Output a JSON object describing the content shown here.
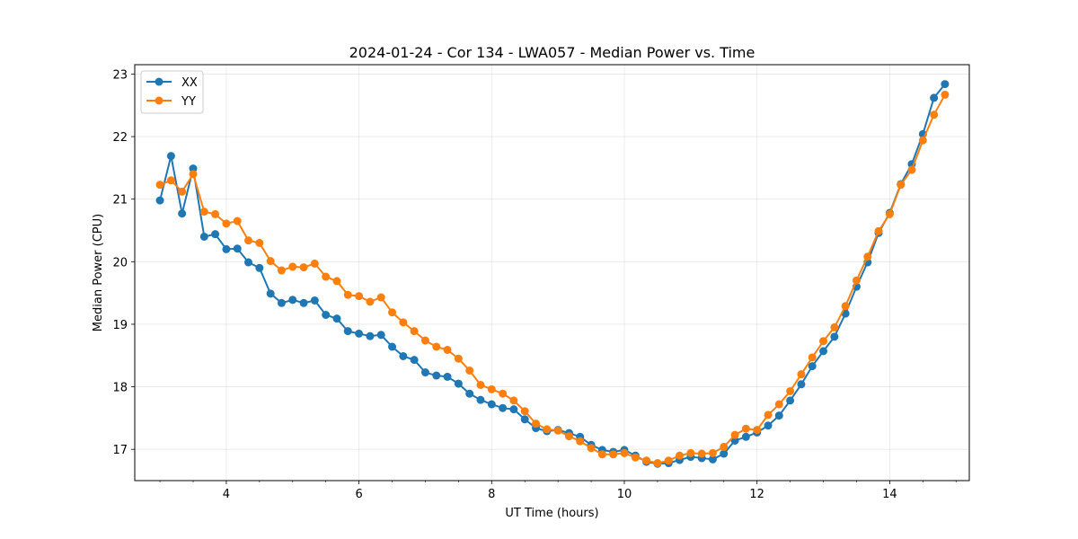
{
  "chart_data": {
    "type": "line",
    "title": "2024-01-24 - Cor 134 - LWA057 - Median Power vs. Time",
    "xlabel": "UT Time (hours)",
    "ylabel": "Median Power (CPU)",
    "xlim": [
      2.62,
      15.2
    ],
    "ylim": [
      16.5,
      23.15
    ],
    "xticks": [
      4,
      6,
      8,
      10,
      12,
      14
    ],
    "xtick_labels": [
      "4",
      "6",
      "8",
      "10",
      "12",
      "14"
    ],
    "xminor_step": 0.5,
    "yticks": [
      17,
      18,
      19,
      20,
      21,
      22,
      23
    ],
    "ytick_labels": [
      "17",
      "18",
      "19",
      "20",
      "21",
      "22",
      "23"
    ],
    "grid": true,
    "legend_position": "top-left",
    "x": [
      3.0,
      3.167,
      3.333,
      3.5,
      3.667,
      3.833,
      4.0,
      4.167,
      4.333,
      4.5,
      4.667,
      4.833,
      5.0,
      5.167,
      5.333,
      5.5,
      5.667,
      5.833,
      6.0,
      6.167,
      6.333,
      6.5,
      6.667,
      6.833,
      7.0,
      7.167,
      7.333,
      7.5,
      7.667,
      7.833,
      8.0,
      8.167,
      8.333,
      8.5,
      8.667,
      8.833,
      9.0,
      9.167,
      9.333,
      9.5,
      9.667,
      9.833,
      10.0,
      10.167,
      10.333,
      10.5,
      10.667,
      10.833,
      11.0,
      11.167,
      11.333,
      11.5,
      11.667,
      11.833,
      12.0,
      12.167,
      12.333,
      12.5,
      12.667,
      12.833,
      13.0,
      13.167,
      13.333,
      13.5,
      13.667,
      13.833,
      14.0,
      14.167,
      14.333,
      14.5,
      14.667,
      14.833
    ],
    "series": [
      {
        "name": "XX",
        "color": "#1f77b4",
        "values": [
          20.98,
          21.69,
          20.77,
          21.49,
          20.4,
          20.44,
          20.2,
          20.21,
          19.99,
          19.9,
          19.49,
          19.34,
          19.39,
          19.34,
          19.38,
          19.15,
          19.09,
          18.89,
          18.85,
          18.81,
          18.83,
          18.64,
          18.49,
          18.43,
          18.23,
          18.18,
          18.16,
          18.05,
          17.89,
          17.79,
          17.72,
          17.66,
          17.64,
          17.48,
          17.34,
          17.29,
          17.31,
          17.26,
          17.2,
          17.07,
          16.99,
          16.96,
          16.99,
          16.9,
          16.8,
          16.77,
          16.78,
          16.83,
          16.88,
          16.86,
          16.84,
          16.93,
          17.14,
          17.2,
          17.27,
          17.38,
          17.54,
          17.78,
          18.04,
          18.33,
          18.57,
          18.8,
          19.17,
          19.6,
          19.99,
          20.46,
          20.78,
          21.24,
          21.56,
          22.04,
          22.62,
          22.84
        ]
      },
      {
        "name": "YY",
        "color": "#ff7f0e",
        "values": [
          21.23,
          21.3,
          21.12,
          21.4,
          20.8,
          20.76,
          20.61,
          20.65,
          20.34,
          20.3,
          20.01,
          19.86,
          19.92,
          19.91,
          19.97,
          19.76,
          19.69,
          19.47,
          19.45,
          19.36,
          19.43,
          19.19,
          19.03,
          18.89,
          18.74,
          18.64,
          18.59,
          18.45,
          18.26,
          18.03,
          17.96,
          17.89,
          17.78,
          17.61,
          17.41,
          17.32,
          17.3,
          17.21,
          17.13,
          17.02,
          16.92,
          16.92,
          16.94,
          16.87,
          16.82,
          16.78,
          16.82,
          16.9,
          16.94,
          16.93,
          16.94,
          17.04,
          17.23,
          17.33,
          17.31,
          17.55,
          17.72,
          17.93,
          18.2,
          18.47,
          18.73,
          18.95,
          19.29,
          19.7,
          20.08,
          20.49,
          20.76,
          21.23,
          21.47,
          21.94,
          22.35,
          22.67
        ]
      }
    ]
  }
}
